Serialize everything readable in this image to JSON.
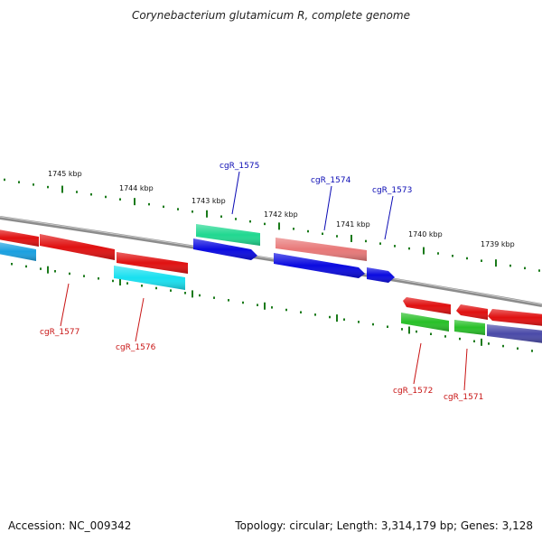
{
  "header": {
    "title": "Corynebacterium glutamicum R, complete genome"
  },
  "footer": {
    "accession": "Accession: NC_009342",
    "stats": "Topology: circular; Length: 3,314,179 bp; Genes: 3,128"
  },
  "colors": {
    "backbone": "#8c8c8c",
    "tick": "#1a7a1a",
    "label_forward": "#0a0ab4",
    "label_reverse": "#c81414"
  },
  "scale_labels": [
    "1745 kbp",
    "1744 kbp",
    "1743 kbp",
    "1742 kbp",
    "1741 kbp",
    "1740 kbp",
    "1739 kbp"
  ],
  "gene_labels": [
    {
      "name": "cgR_1575",
      "strand": "forward"
    },
    {
      "name": "cgR_1574",
      "strand": "forward"
    },
    {
      "name": "cgR_1573",
      "strand": "forward"
    },
    {
      "name": "cgR_1577",
      "strand": "reverse"
    },
    {
      "name": "cgR_1576",
      "strand": "reverse"
    },
    {
      "name": "cgR_1572",
      "strand": "reverse"
    },
    {
      "name": "cgR_1571",
      "strand": "reverse"
    }
  ],
  "features": [
    {
      "name": "red-block-1",
      "color": "#e01010",
      "label": null
    },
    {
      "name": "red-block-2",
      "color": "#e01010",
      "label": null
    },
    {
      "name": "red-block-3",
      "color": "#e01010",
      "label": null
    },
    {
      "name": "green-block-1",
      "color": "#20d890",
      "label": null
    },
    {
      "name": "salmon-block-1",
      "color": "#e87878",
      "label": null
    },
    {
      "name": "cyan-block-1",
      "color": "#1aa0e0",
      "label": null
    },
    {
      "name": "cyan-block-2",
      "color": "#18e0f0",
      "label": null
    },
    {
      "name": "blue-arrow-1",
      "color": "#0a0ae0",
      "label": "cgR_1575"
    },
    {
      "name": "blue-arrow-2",
      "color": "#0a0ae0",
      "label": "cgR_1574"
    },
    {
      "name": "blue-arrow-3",
      "color": "#0a0ae0",
      "label": "cgR_1573"
    },
    {
      "name": "red-block-4",
      "color": "#e01010",
      "label": null
    },
    {
      "name": "red-block-5",
      "color": "#e01010",
      "label": null
    },
    {
      "name": "red-block-6",
      "color": "#e01010",
      "label": null
    },
    {
      "name": "green-block-2",
      "color": "#28c028",
      "label": "cgR_1572"
    },
    {
      "name": "green-block-3",
      "color": "#28c028",
      "label": "cgR_1571"
    },
    {
      "name": "purple-block-1",
      "color": "#4a4aa8",
      "label": null
    }
  ]
}
